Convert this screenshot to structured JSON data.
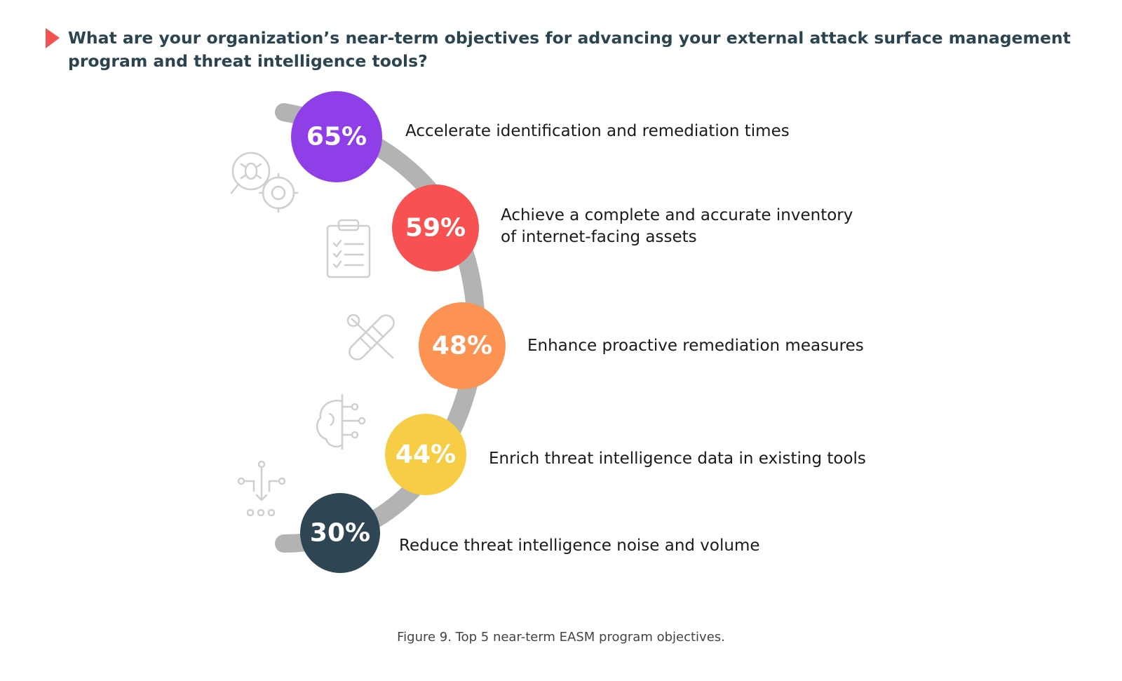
{
  "question": "What are your organization’s near-term objectives for advancing your external attack surface management program and threat intelligence tools?",
  "caption": "Figure 9. Top 5 near-term EASM program objectives.",
  "colors": {
    "title": "#2b4450",
    "marker": "#f25350",
    "track": "#b3b3b3",
    "icons": "#cfcfcf"
  },
  "icons": [
    "bug-gear-icon",
    "clipboard-checklist-icon",
    "tools-bandage-icon",
    "brain-circuit-icon",
    "data-flow-icon"
  ],
  "chart_data": {
    "type": "bar",
    "title": "What are your organization’s near-term objectives for advancing your external attack surface management program and threat intelligence tools?",
    "unit": "%",
    "categories": [
      "Accelerate identification and remediation times",
      "Achieve a complete and accurate inventory of internet-facing assets",
      "Enhance proactive remediation measures",
      "Enrich threat intelligence data in existing tools",
      "Reduce threat intelligence noise and volume"
    ],
    "values": [
      65,
      59,
      48,
      44,
      30
    ],
    "labels": [
      "65%",
      "59%",
      "48%",
      "44%",
      "30%"
    ],
    "label_lines": [
      [
        "Accelerate identification and remediation times"
      ],
      [
        "Achieve a complete and accurate inventory",
        "of internet-facing assets"
      ],
      [
        "Enhance proactive remediation measures"
      ],
      [
        "Enrich threat intelligence data in existing tools"
      ],
      [
        "Reduce threat intelligence noise and volume"
      ]
    ],
    "colors": [
      "#8f3fe8",
      "#f85151",
      "#fc9352",
      "#f6cd44",
      "#2e4553"
    ]
  }
}
